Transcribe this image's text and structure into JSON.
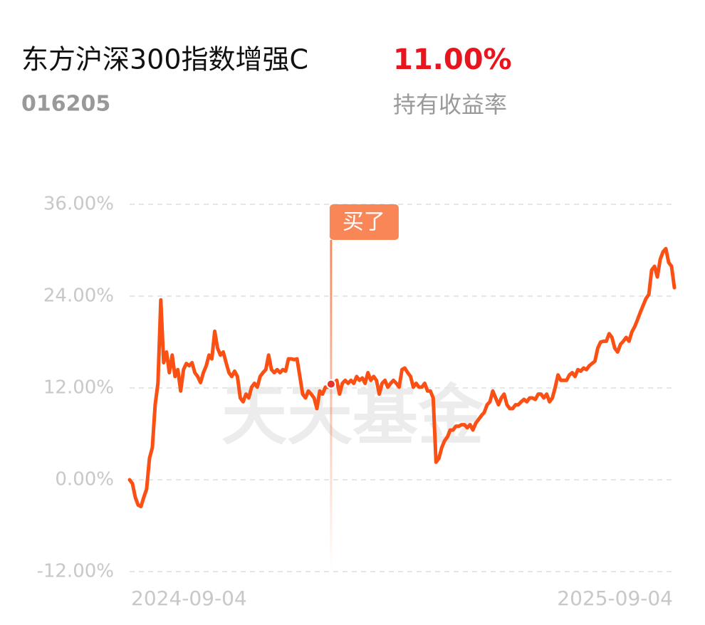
{
  "fund_name": "东方沪深300指数增强C",
  "fund_code": "016205",
  "return": "11.00%",
  "return_label": "持有收益率",
  "chart_data": {
    "type": "line",
    "watermark": "天天基金",
    "annotation": {
      "text": "买了",
      "index": 71
    },
    "categories": [
      "2024-09-04",
      null,
      null,
      null,
      null,
      null,
      null,
      null,
      null,
      null,
      null,
      null,
      null,
      null,
      null,
      null,
      null,
      null,
      null,
      null,
      null,
      null,
      null,
      null,
      null,
      null,
      null,
      null,
      null,
      null,
      null,
      null,
      null,
      null,
      null,
      null,
      null,
      null,
      null,
      null,
      null,
      null,
      null,
      null,
      null,
      null,
      null,
      null,
      null,
      null,
      null,
      null,
      null,
      null,
      null,
      null,
      null,
      null,
      null,
      null,
      null,
      null,
      null,
      null,
      null,
      null,
      null,
      null,
      null,
      null,
      null,
      null,
      null,
      null,
      null,
      null,
      null,
      null,
      null,
      null,
      null,
      null,
      null,
      null,
      null,
      null,
      null,
      null,
      null,
      null,
      null,
      null,
      null,
      null,
      null,
      null,
      null,
      null,
      null,
      null,
      null,
      null,
      null,
      null,
      null,
      null,
      null,
      null,
      null,
      null,
      null,
      null,
      null,
      null,
      null,
      null,
      null,
      null,
      null,
      null,
      null,
      null,
      null,
      null,
      null,
      null,
      null,
      null,
      null,
      null,
      null,
      null,
      null,
      null,
      null,
      null,
      null,
      null,
      null,
      null,
      null,
      null,
      null,
      null,
      null,
      null,
      null,
      null,
      null,
      null,
      null,
      null,
      null,
      null,
      null,
      null,
      null,
      null,
      null,
      null,
      null,
      null,
      null,
      null,
      null,
      null,
      null,
      null,
      null,
      null,
      null,
      null,
      null,
      null,
      null,
      null,
      null,
      null,
      null,
      null,
      null,
      null,
      null,
      null,
      null,
      null,
      null,
      null,
      null,
      null,
      null,
      null,
      "2025-09-04"
    ],
    "series": [
      {
        "color": "#fa5014",
        "values": [
          0,
          -0.5,
          -2.3,
          -3.3,
          -3.5,
          -2.3,
          -1.2,
          2.8,
          4.2,
          9.8,
          12.6,
          23.5,
          15.3,
          16.7,
          14.0,
          16.3,
          13.5,
          14.4,
          11.6,
          14.4,
          15.2,
          14.9,
          15.3,
          14.0,
          13.5,
          12.7,
          14.0,
          14.9,
          16.3,
          15.8,
          19.4,
          17.2,
          16.3,
          16.7,
          15.3,
          14.0,
          13.5,
          14.2,
          13.5,
          10.7,
          10.2,
          11.2,
          10.7,
          12.1,
          12.6,
          12.1,
          13.5,
          14.0,
          14.4,
          16.3,
          14.4,
          14.0,
          14.4,
          14.0,
          14.4,
          14.2,
          15.8,
          15.8,
          15.7,
          15.8,
          13.5,
          11.2,
          10.7,
          11.6,
          11.2,
          10.7,
          9.3,
          11.6,
          11.2,
          12.1,
          12.1,
          12.5,
          12.6,
          13.0,
          11.2,
          12.6,
          13.0,
          12.6,
          13.0,
          12.6,
          13.5,
          13.0,
          13.3,
          12.6,
          14.0,
          13.0,
          13.5,
          13.0,
          11.2,
          12.6,
          13.0,
          12.1,
          12.6,
          13.0,
          12.6,
          12.1,
          14.4,
          14.6,
          14.0,
          13.5,
          12.1,
          12.6,
          12.1,
          12.1,
          12.6,
          11.6,
          11.6,
          10.7,
          2.3,
          2.8,
          4.2,
          5.1,
          5.6,
          6.5,
          6.5,
          7.0,
          7.0,
          7.2,
          7.2,
          6.8,
          7.2,
          6.5,
          7.4,
          7.9,
          8.4,
          8.8,
          9.8,
          10.2,
          11.6,
          10.7,
          9.8,
          10.7,
          11.2,
          9.8,
          9.3,
          9.3,
          9.8,
          9.8,
          10.2,
          10.5,
          10.2,
          10.7,
          10.7,
          10.5,
          11.2,
          11.2,
          10.7,
          11.2,
          10.2,
          10.7,
          12.1,
          13.7,
          13.0,
          13.0,
          13.0,
          13.7,
          14.0,
          13.5,
          14.4,
          14.2,
          14.6,
          14.4,
          14.9,
          15.2,
          15.5,
          17.2,
          18.0,
          18.1,
          18.1,
          19.1,
          18.6,
          17.2,
          16.7,
          17.7,
          18.1,
          18.6,
          18.1,
          19.3,
          20.0,
          20.9,
          21.9,
          22.8,
          23.7,
          24.2,
          27.4,
          27.9,
          26.5,
          28.8,
          29.8,
          30.2,
          28.4,
          27.9,
          25.1
        ]
      }
    ],
    "ylim": [
      -12,
      36
    ],
    "yticks": [
      {
        "value": -12,
        "label": "-12.00%"
      },
      {
        "value": 0,
        "label": "0.00%"
      },
      {
        "value": 12,
        "label": "12.00%"
      },
      {
        "value": 24,
        "label": "24.00%"
      },
      {
        "value": 36,
        "label": "36.00%"
      }
    ],
    "grid": true
  }
}
